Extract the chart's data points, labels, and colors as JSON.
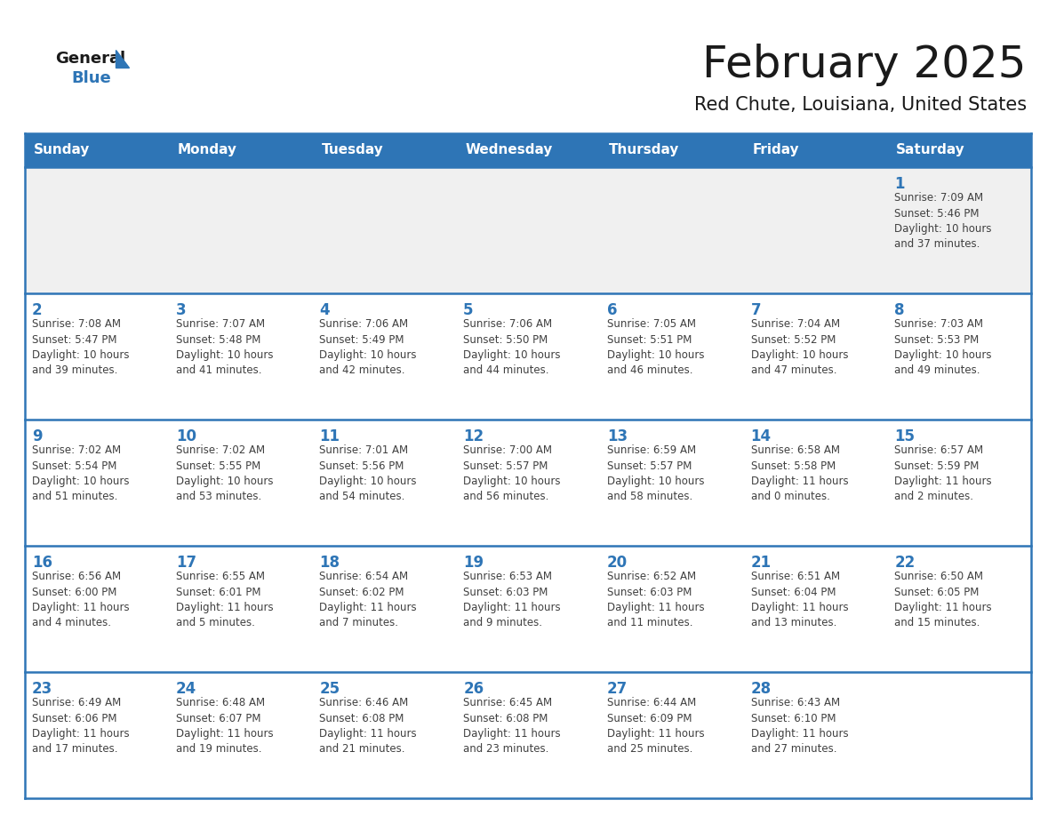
{
  "title": "February 2025",
  "subtitle": "Red Chute, Louisiana, United States",
  "header_bg": "#2E75B6",
  "header_text_color": "#FFFFFF",
  "cell_bg_white": "#FFFFFF",
  "cell_bg_gray": "#F0F0F0",
  "day_number_color": "#2E75B6",
  "info_text_color": "#404040",
  "border_color": "#2E75B6",
  "title_color": "#1a1a1a",
  "subtitle_color": "#1a1a1a",
  "days_of_week": [
    "Sunday",
    "Monday",
    "Tuesday",
    "Wednesday",
    "Thursday",
    "Friday",
    "Saturday"
  ],
  "weeks": [
    [
      {
        "day": null,
        "info": ""
      },
      {
        "day": null,
        "info": ""
      },
      {
        "day": null,
        "info": ""
      },
      {
        "day": null,
        "info": ""
      },
      {
        "day": null,
        "info": ""
      },
      {
        "day": null,
        "info": ""
      },
      {
        "day": 1,
        "info": "Sunrise: 7:09 AM\nSunset: 5:46 PM\nDaylight: 10 hours\nand 37 minutes."
      }
    ],
    [
      {
        "day": 2,
        "info": "Sunrise: 7:08 AM\nSunset: 5:47 PM\nDaylight: 10 hours\nand 39 minutes."
      },
      {
        "day": 3,
        "info": "Sunrise: 7:07 AM\nSunset: 5:48 PM\nDaylight: 10 hours\nand 41 minutes."
      },
      {
        "day": 4,
        "info": "Sunrise: 7:06 AM\nSunset: 5:49 PM\nDaylight: 10 hours\nand 42 minutes."
      },
      {
        "day": 5,
        "info": "Sunrise: 7:06 AM\nSunset: 5:50 PM\nDaylight: 10 hours\nand 44 minutes."
      },
      {
        "day": 6,
        "info": "Sunrise: 7:05 AM\nSunset: 5:51 PM\nDaylight: 10 hours\nand 46 minutes."
      },
      {
        "day": 7,
        "info": "Sunrise: 7:04 AM\nSunset: 5:52 PM\nDaylight: 10 hours\nand 47 minutes."
      },
      {
        "day": 8,
        "info": "Sunrise: 7:03 AM\nSunset: 5:53 PM\nDaylight: 10 hours\nand 49 minutes."
      }
    ],
    [
      {
        "day": 9,
        "info": "Sunrise: 7:02 AM\nSunset: 5:54 PM\nDaylight: 10 hours\nand 51 minutes."
      },
      {
        "day": 10,
        "info": "Sunrise: 7:02 AM\nSunset: 5:55 PM\nDaylight: 10 hours\nand 53 minutes."
      },
      {
        "day": 11,
        "info": "Sunrise: 7:01 AM\nSunset: 5:56 PM\nDaylight: 10 hours\nand 54 minutes."
      },
      {
        "day": 12,
        "info": "Sunrise: 7:00 AM\nSunset: 5:57 PM\nDaylight: 10 hours\nand 56 minutes."
      },
      {
        "day": 13,
        "info": "Sunrise: 6:59 AM\nSunset: 5:57 PM\nDaylight: 10 hours\nand 58 minutes."
      },
      {
        "day": 14,
        "info": "Sunrise: 6:58 AM\nSunset: 5:58 PM\nDaylight: 11 hours\nand 0 minutes."
      },
      {
        "day": 15,
        "info": "Sunrise: 6:57 AM\nSunset: 5:59 PM\nDaylight: 11 hours\nand 2 minutes."
      }
    ],
    [
      {
        "day": 16,
        "info": "Sunrise: 6:56 AM\nSunset: 6:00 PM\nDaylight: 11 hours\nand 4 minutes."
      },
      {
        "day": 17,
        "info": "Sunrise: 6:55 AM\nSunset: 6:01 PM\nDaylight: 11 hours\nand 5 minutes."
      },
      {
        "day": 18,
        "info": "Sunrise: 6:54 AM\nSunset: 6:02 PM\nDaylight: 11 hours\nand 7 minutes."
      },
      {
        "day": 19,
        "info": "Sunrise: 6:53 AM\nSunset: 6:03 PM\nDaylight: 11 hours\nand 9 minutes."
      },
      {
        "day": 20,
        "info": "Sunrise: 6:52 AM\nSunset: 6:03 PM\nDaylight: 11 hours\nand 11 minutes."
      },
      {
        "day": 21,
        "info": "Sunrise: 6:51 AM\nSunset: 6:04 PM\nDaylight: 11 hours\nand 13 minutes."
      },
      {
        "day": 22,
        "info": "Sunrise: 6:50 AM\nSunset: 6:05 PM\nDaylight: 11 hours\nand 15 minutes."
      }
    ],
    [
      {
        "day": 23,
        "info": "Sunrise: 6:49 AM\nSunset: 6:06 PM\nDaylight: 11 hours\nand 17 minutes."
      },
      {
        "day": 24,
        "info": "Sunrise: 6:48 AM\nSunset: 6:07 PM\nDaylight: 11 hours\nand 19 minutes."
      },
      {
        "day": 25,
        "info": "Sunrise: 6:46 AM\nSunset: 6:08 PM\nDaylight: 11 hours\nand 21 minutes."
      },
      {
        "day": 26,
        "info": "Sunrise: 6:45 AM\nSunset: 6:08 PM\nDaylight: 11 hours\nand 23 minutes."
      },
      {
        "day": 27,
        "info": "Sunrise: 6:44 AM\nSunset: 6:09 PM\nDaylight: 11 hours\nand 25 minutes."
      },
      {
        "day": 28,
        "info": "Sunrise: 6:43 AM\nSunset: 6:10 PM\nDaylight: 11 hours\nand 27 minutes."
      },
      {
        "day": null,
        "info": ""
      }
    ]
  ],
  "logo_general_color": "#1a1a1a",
  "logo_blue_color": "#2E75B6",
  "logo_triangle_color": "#2E75B6"
}
